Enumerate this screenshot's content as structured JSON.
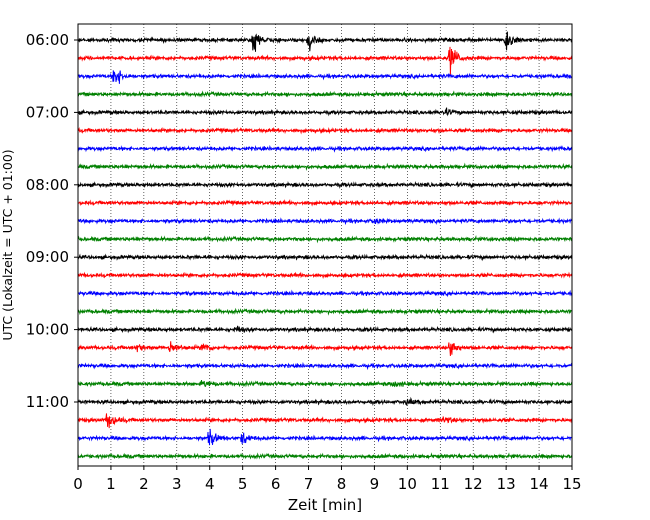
{
  "chart_data": {
    "type": "line",
    "title": "",
    "xlabel": "Zeit  [min]",
    "ylabel": "UTC (Lokalzeit = UTC + 01:00)",
    "xlim": [
      0,
      15
    ],
    "x_ticks": [
      0,
      1,
      2,
      3,
      4,
      5,
      6,
      7,
      8,
      9,
      10,
      11,
      12,
      13,
      14,
      15
    ],
    "y_tick_labels": [
      "06:00",
      "07:00",
      "08:00",
      "09:00",
      "10:00",
      "11:00"
    ],
    "grid": "vertical dotted",
    "trace_interval_minutes": 15,
    "start_time": "06:00",
    "colors": [
      "#000000",
      "#ff0000",
      "#0000ff",
      "#008000"
    ],
    "traces": [
      {
        "start": "06:00",
        "color": "#000000",
        "events": [
          {
            "t": 5.3,
            "amp": 1.6
          },
          {
            "t": 7.0,
            "amp": 1.0
          },
          {
            "t": 13.0,
            "amp": 1.4
          }
        ]
      },
      {
        "start": "06:15",
        "color": "#ff0000",
        "events": [
          {
            "t": 11.3,
            "amp": 1.8
          }
        ]
      },
      {
        "start": "06:30",
        "color": "#0000ff",
        "events": [
          {
            "t": 1.1,
            "amp": 1.4
          }
        ]
      },
      {
        "start": "06:45",
        "color": "#008000",
        "events": []
      },
      {
        "start": "07:00",
        "color": "#000000",
        "events": [
          {
            "t": 11.1,
            "amp": 0.4
          }
        ]
      },
      {
        "start": "07:15",
        "color": "#ff0000",
        "events": []
      },
      {
        "start": "07:30",
        "color": "#0000ff",
        "events": []
      },
      {
        "start": "07:45",
        "color": "#008000",
        "events": []
      },
      {
        "start": "08:00",
        "color": "#000000",
        "events": []
      },
      {
        "start": "08:15",
        "color": "#ff0000",
        "events": []
      },
      {
        "start": "08:30",
        "color": "#0000ff",
        "events": [
          {
            "t": 9.0,
            "amp": 0.3
          }
        ]
      },
      {
        "start": "08:45",
        "color": "#008000",
        "events": []
      },
      {
        "start": "09:00",
        "color": "#000000",
        "events": []
      },
      {
        "start": "09:15",
        "color": "#ff0000",
        "events": []
      },
      {
        "start": "09:30",
        "color": "#0000ff",
        "events": []
      },
      {
        "start": "09:45",
        "color": "#008000",
        "events": []
      },
      {
        "start": "10:00",
        "color": "#000000",
        "events": [
          {
            "t": 4.8,
            "amp": 0.3
          }
        ]
      },
      {
        "start": "10:15",
        "color": "#ff0000",
        "events": [
          {
            "t": 1.8,
            "amp": 0.4
          },
          {
            "t": 2.8,
            "amp": 0.8
          },
          {
            "t": 3.8,
            "amp": 0.6
          },
          {
            "t": 11.3,
            "amp": 1.0
          }
        ]
      },
      {
        "start": "10:30",
        "color": "#0000ff",
        "events": []
      },
      {
        "start": "10:45",
        "color": "#008000",
        "events": [
          {
            "t": 3.8,
            "amp": 0.4
          },
          {
            "t": 9.6,
            "amp": 0.4
          }
        ]
      },
      {
        "start": "11:00",
        "color": "#000000",
        "events": [
          {
            "t": 10.0,
            "amp": 0.3
          }
        ]
      },
      {
        "start": "11:15",
        "color": "#ff0000",
        "events": [
          {
            "t": 0.9,
            "amp": 1.0
          },
          {
            "t": 11.1,
            "amp": 0.4
          }
        ]
      },
      {
        "start": "11:30",
        "color": "#0000ff",
        "events": [
          {
            "t": 4.0,
            "amp": 1.0
          },
          {
            "t": 5.0,
            "amp": 0.7
          }
        ]
      },
      {
        "start": "11:45",
        "color": "#008000",
        "events": []
      }
    ]
  }
}
